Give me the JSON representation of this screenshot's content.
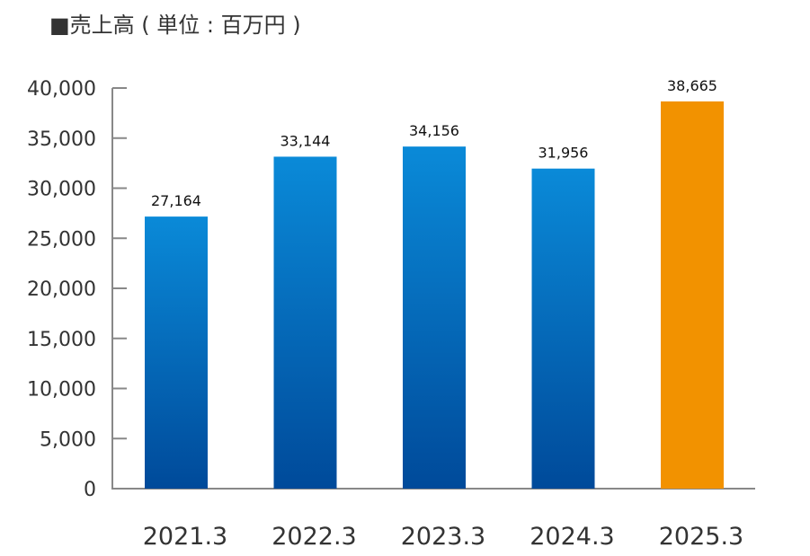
{
  "chart_data": {
    "type": "bar",
    "title": "■売上高 ( 単位 : 百万円 )",
    "xlabel": "",
    "ylabel": "",
    "categories": [
      "2021.3",
      "2022.3",
      "2023.3",
      "2024.3",
      "2025.3"
    ],
    "values": [
      27164,
      33144,
      34156,
      31956,
      38665
    ],
    "value_labels": [
      "27,164",
      "33,144",
      "34,156",
      "31,956",
      "38,665"
    ],
    "ylim": [
      0,
      40000
    ],
    "yticks": [
      0,
      5000,
      10000,
      15000,
      20000,
      25000,
      30000,
      35000,
      40000
    ],
    "ytick_labels": [
      "0",
      "5,000",
      "10,000",
      "15,000",
      "20,000",
      "25,000",
      "30,000",
      "35,000",
      "40,000"
    ],
    "grid": false,
    "bar_gradient": [
      "#0a8ad8",
      "#004a9a"
    ],
    "highlight_index": 4,
    "highlight_color": "#f29200",
    "axis_color": "#888888"
  }
}
